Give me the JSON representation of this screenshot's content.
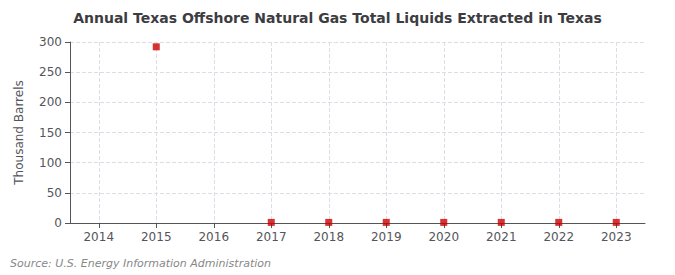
{
  "chart_data": {
    "type": "scatter",
    "title": "Annual Texas Offshore Natural Gas Total Liquids Extracted in Texas",
    "ylabel": "Thousand Barrels",
    "source": "Source: U.S. Energy Information Administration",
    "x": [
      2014,
      2015,
      2016,
      2017,
      2018,
      2019,
      2020,
      2021,
      2022,
      2023
    ],
    "values": [
      null,
      292,
      null,
      1,
      1,
      1,
      1,
      1,
      1,
      1
    ],
    "color": "#cc0000",
    "marker": "square",
    "xlim": [
      2013.5,
      2023.5
    ],
    "xticks": [
      2014,
      2015,
      2016,
      2017,
      2018,
      2019,
      2020,
      2021,
      2022,
      2023
    ],
    "ylim": [
      0,
      300
    ],
    "yticks": [
      0,
      50,
      100,
      150,
      200,
      250,
      300
    ],
    "grid": true
  }
}
